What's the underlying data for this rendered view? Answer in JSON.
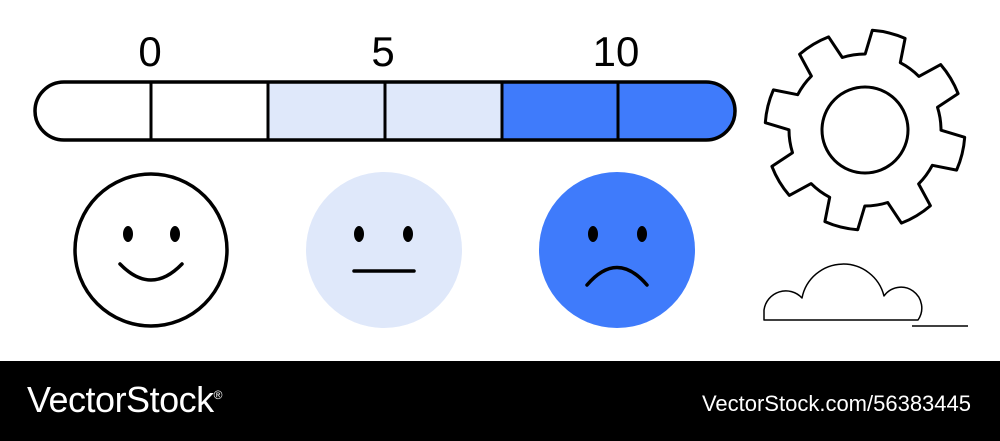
{
  "scale": {
    "labels": [
      "0",
      "5",
      "10"
    ],
    "segments": 6
  },
  "faces": [
    {
      "mood": "happy",
      "fill": "#ffffff",
      "outlined": true
    },
    {
      "mood": "neutral",
      "fill": "#dfe8fa",
      "outlined": false
    },
    {
      "mood": "sad",
      "fill": "#3f7bfb",
      "outlined": false
    }
  ],
  "icons": {
    "settings": "gear-icon",
    "cloud": "cloud-icon"
  },
  "colors": {
    "outline": "#000000",
    "light_blue": "#dfe8fa",
    "blue": "#3f7bfb",
    "white": "#ffffff"
  },
  "footer": {
    "brand": "VectorStock",
    "trademark": "®",
    "url": "VectorStock.com/56383445"
  }
}
